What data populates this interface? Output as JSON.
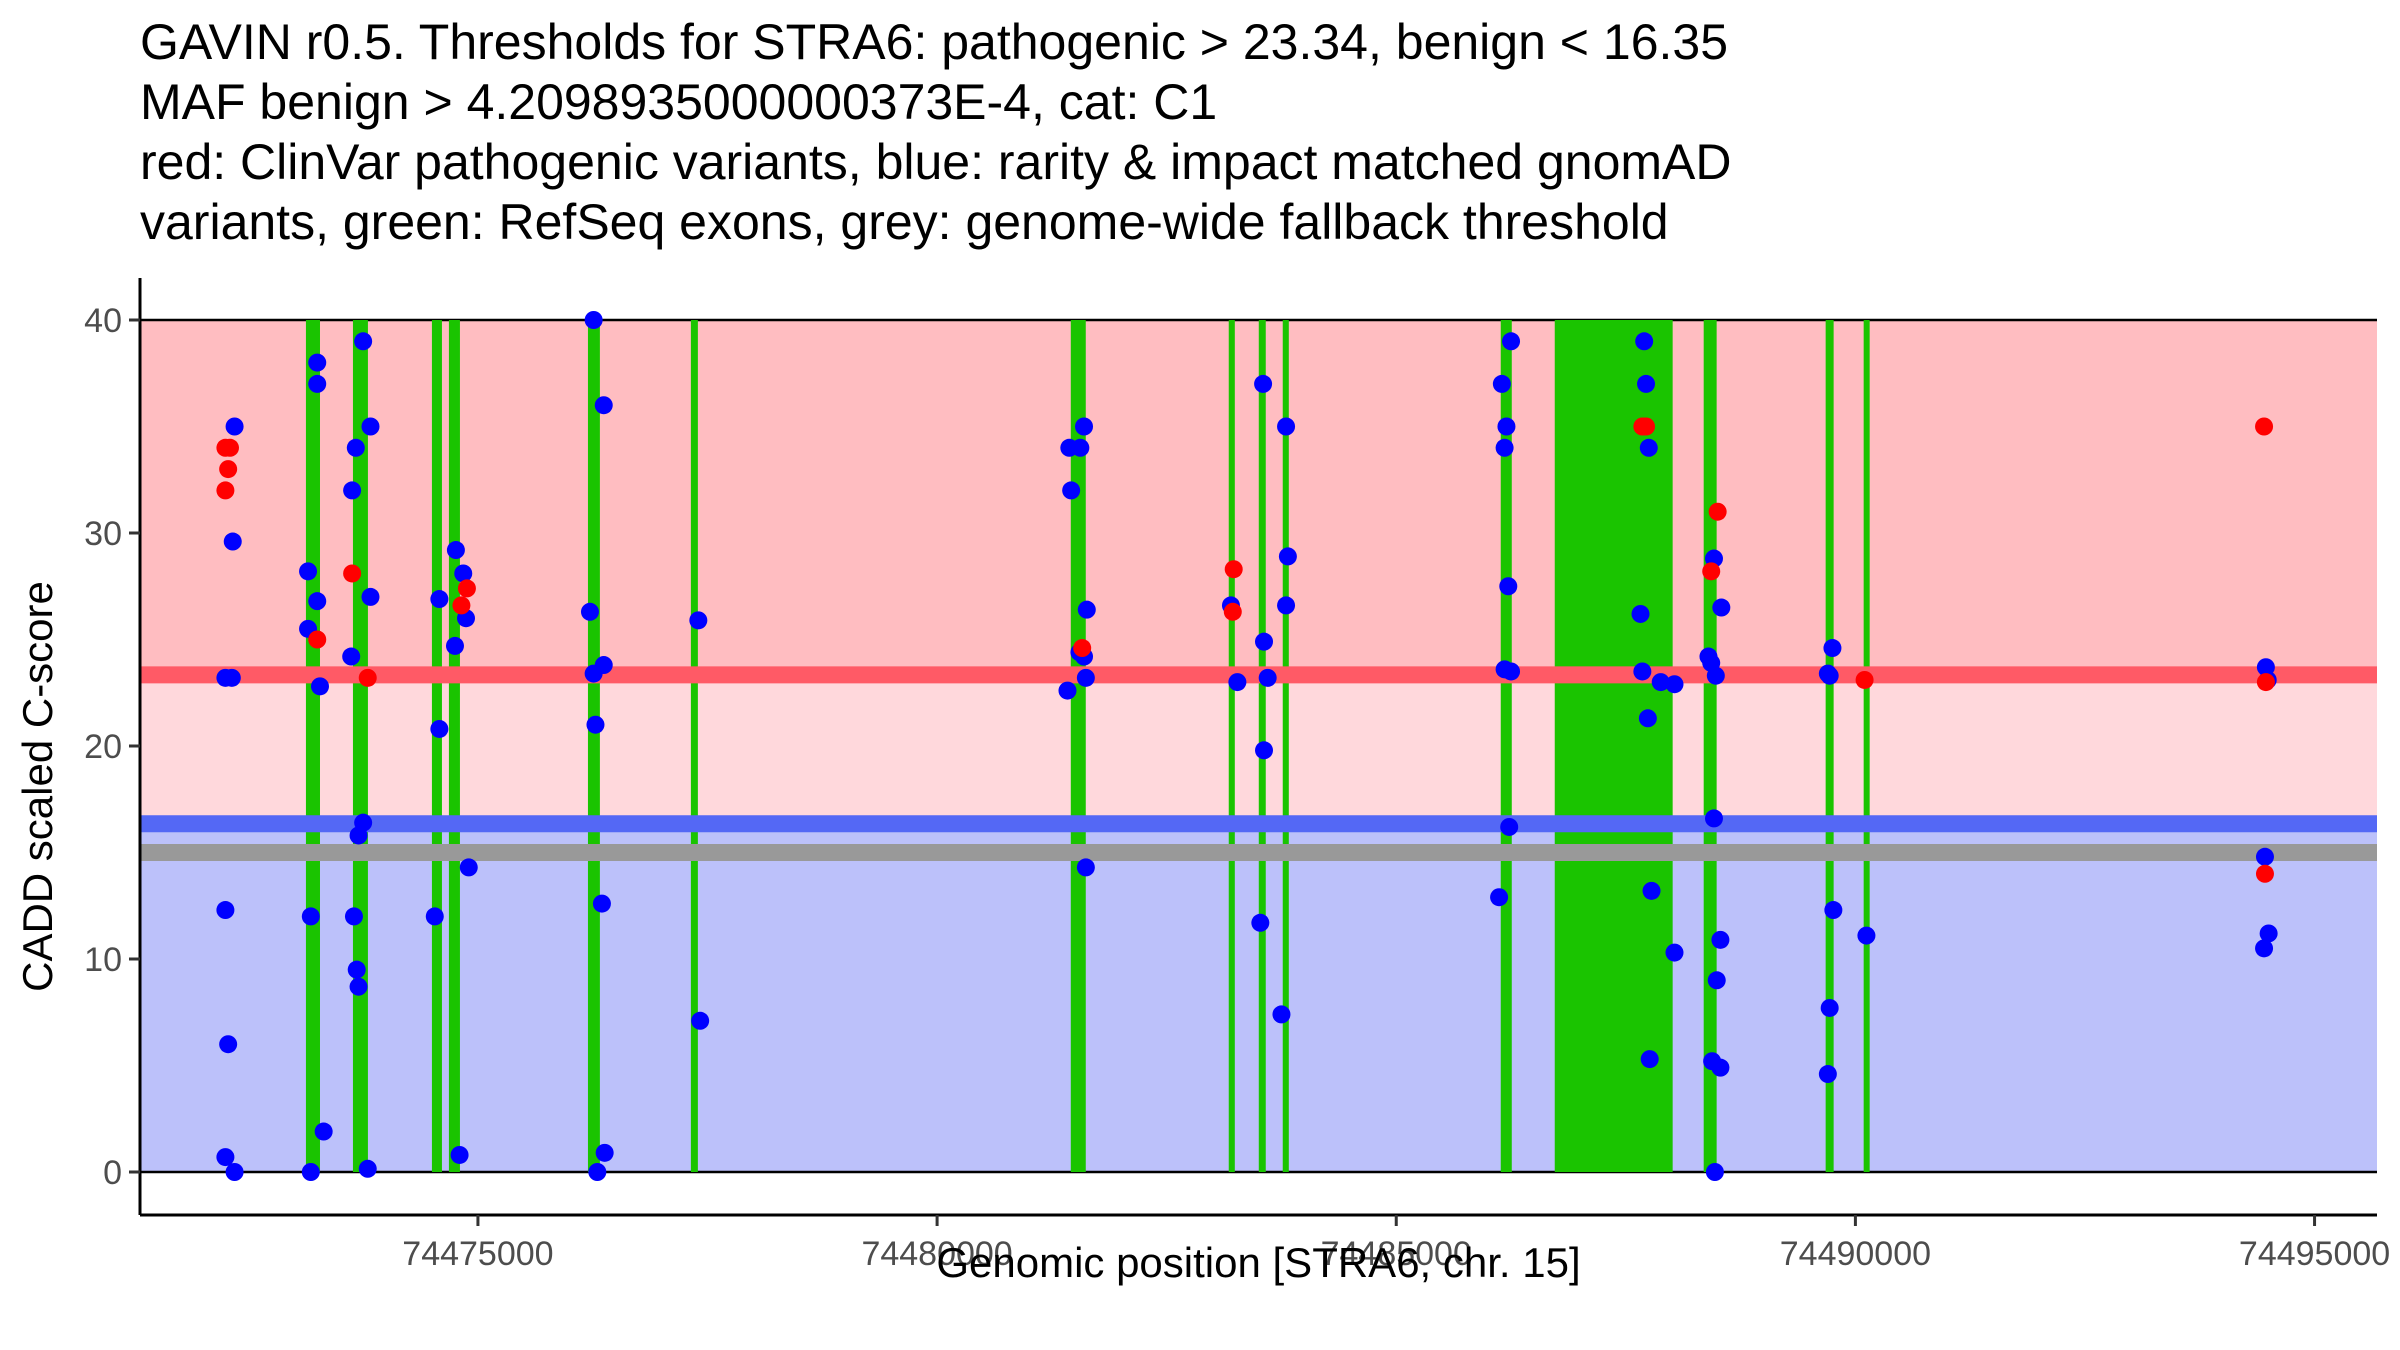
{
  "title_lines": [
    "GAVIN r0.5. Thresholds for STRA6: pathogenic > 23.34, benign < 16.35",
    "MAF benign > 4.2098935000000373E-4, cat: C1",
    "red: ClinVar pathogenic variants, blue: rarity & impact matched gnomAD",
    "variants, green: RefSeq exons, grey: genome-wide fallback threshold"
  ],
  "chart_data": {
    "type": "scatter",
    "title": "GAVIN r0.5. Thresholds for STRA6: pathogenic > 23.34, benign < 16.35",
    "xlabel": "Genomic position [STRA6, chr. 15]",
    "ylabel": "CADD scaled C-score",
    "xlim": [
      74471320,
      74495680
    ],
    "ylim": [
      -2,
      42
    ],
    "x_ticks": [
      74475000,
      74480000,
      74485000,
      74490000,
      74495000
    ],
    "x_tick_labels": [
      "74475000",
      "74480000",
      "74485000",
      "74490000",
      "74495000"
    ],
    "y_ticks": [
      0,
      10,
      20,
      30,
      40
    ],
    "y_tick_labels": [
      "0",
      "10",
      "20",
      "30",
      "40"
    ],
    "grid": false,
    "legend": "none",
    "thresholds": {
      "pathogenic": 23.34,
      "benign": 16.35,
      "genome_wide_fallback": 15.0,
      "score_range": [
        0,
        40
      ]
    },
    "colors": {
      "pathogenic_region": "#FFBDC1",
      "intermediate_region": "#FFD8DC",
      "benign_region": "#BCC1FA",
      "pathogenic_line": "#FF5A66",
      "benign_line": "#5468F5",
      "fallback_line": "#999999",
      "exon": "#1AC400",
      "clinvar": "#FF0000",
      "gnomad": "#0000FF"
    },
    "exons": [
      [
        74473127,
        74473280
      ],
      [
        74473639,
        74473802
      ],
      [
        74474499,
        74474608
      ],
      [
        74474684,
        74474804
      ],
      [
        74476198,
        74476328
      ],
      [
        74477319,
        74477395
      ],
      [
        74481456,
        74481619
      ],
      [
        74483176,
        74483242
      ],
      [
        74483503,
        74483579
      ],
      [
        74483764,
        74483830
      ],
      [
        74486138,
        74486258
      ],
      [
        74486726,
        74488010
      ],
      [
        74488348,
        74488489
      ],
      [
        74489676,
        74489763
      ],
      [
        74490090,
        74490155
      ]
    ],
    "series": [
      {
        "name": "ClinVar pathogenic",
        "color": "#FF0000",
        "points": [
          [
            74472250,
            34.0
          ],
          [
            74472300,
            34.0
          ],
          [
            74472280,
            33.0
          ],
          [
            74472250,
            32.0
          ],
          [
            74473250,
            25.0
          ],
          [
            74473630,
            28.1
          ],
          [
            74473800,
            23.2
          ],
          [
            74474820,
            26.6
          ],
          [
            74474880,
            27.4
          ],
          [
            74481580,
            24.6
          ],
          [
            74483230,
            28.3
          ],
          [
            74483220,
            26.3
          ],
          [
            74487680,
            35.0
          ],
          [
            74487720,
            35.0
          ],
          [
            74488430,
            28.2
          ],
          [
            74488500,
            31.0
          ],
          [
            74490100,
            23.1
          ],
          [
            74494450,
            35.0
          ],
          [
            74494460,
            14.0
          ],
          [
            74494470,
            23.0
          ]
        ]
      },
      {
        "name": "gnomAD matched",
        "color": "#0000FF",
        "points": [
          [
            74472350,
            35.0
          ],
          [
            74472330,
            29.6
          ],
          [
            74472250,
            23.2
          ],
          [
            74472320,
            23.2
          ],
          [
            74472250,
            12.3
          ],
          [
            74472280,
            6.0
          ],
          [
            74472250,
            0.7
          ],
          [
            74472350,
            0.0
          ],
          [
            74473250,
            38.0
          ],
          [
            74473250,
            37.0
          ],
          [
            74473150,
            28.2
          ],
          [
            74473250,
            26.8
          ],
          [
            74473150,
            25.5
          ],
          [
            74473280,
            22.8
          ],
          [
            74473180,
            12.0
          ],
          [
            74473320,
            1.9
          ],
          [
            74473180,
            0.0
          ],
          [
            74473750,
            39.0
          ],
          [
            74473670,
            34.0
          ],
          [
            74473630,
            32.0
          ],
          [
            74473830,
            35.0
          ],
          [
            74473830,
            27.0
          ],
          [
            74473620,
            24.2
          ],
          [
            74473750,
            16.4
          ],
          [
            74473700,
            15.8
          ],
          [
            74473650,
            12.0
          ],
          [
            74473680,
            9.5
          ],
          [
            74473700,
            8.7
          ],
          [
            74473800,
            0.15
          ],
          [
            74474580,
            26.9
          ],
          [
            74474760,
            29.2
          ],
          [
            74474750,
            24.7
          ],
          [
            74474580,
            20.8
          ],
          [
            74474530,
            12.0
          ],
          [
            74474840,
            28.1
          ],
          [
            74474870,
            26.0
          ],
          [
            74474900,
            14.3
          ],
          [
            74474800,
            0.8
          ],
          [
            74476260,
            40.0
          ],
          [
            74476370,
            36.0
          ],
          [
            74476220,
            26.3
          ],
          [
            74476260,
            23.4
          ],
          [
            74476370,
            23.8
          ],
          [
            74476280,
            21.0
          ],
          [
            74476350,
            12.6
          ],
          [
            74476380,
            0.9
          ],
          [
            74476300,
            0.0
          ],
          [
            74477400,
            25.9
          ],
          [
            74477420,
            7.1
          ],
          [
            74481600,
            35.0
          ],
          [
            74481560,
            34.0
          ],
          [
            74481440,
            34.0
          ],
          [
            74481460,
            32.0
          ],
          [
            74481630,
            26.4
          ],
          [
            74481550,
            24.4
          ],
          [
            74481600,
            24.2
          ],
          [
            74481620,
            23.2
          ],
          [
            74481420,
            22.6
          ],
          [
            74481620,
            14.3
          ],
          [
            74483200,
            26.6
          ],
          [
            74483270,
            23.0
          ],
          [
            74483550,
            37.0
          ],
          [
            74483560,
            24.9
          ],
          [
            74483600,
            23.2
          ],
          [
            74483560,
            19.8
          ],
          [
            74483520,
            11.7
          ],
          [
            74483800,
            35.0
          ],
          [
            74483820,
            28.9
          ],
          [
            74483800,
            26.6
          ],
          [
            74483750,
            7.4
          ],
          [
            74486150,
            37.0
          ],
          [
            74486200,
            35.0
          ],
          [
            74486180,
            34.0
          ],
          [
            74486250,
            39.0
          ],
          [
            74486220,
            27.5
          ],
          [
            74486180,
            23.6
          ],
          [
            74486250,
            23.5
          ],
          [
            74486230,
            16.2
          ],
          [
            74486120,
            12.9
          ],
          [
            74487700,
            39.0
          ],
          [
            74487720,
            37.0
          ],
          [
            74487750,
            34.0
          ],
          [
            74487660,
            26.2
          ],
          [
            74487680,
            23.5
          ],
          [
            74487740,
            21.3
          ],
          [
            74487880,
            23.0
          ],
          [
            74488030,
            22.9
          ],
          [
            74487780,
            13.2
          ],
          [
            74488030,
            10.3
          ],
          [
            74487760,
            5.3
          ],
          [
            74488460,
            28.8
          ],
          [
            74488540,
            26.5
          ],
          [
            74488400,
            24.2
          ],
          [
            74488430,
            23.9
          ],
          [
            74488480,
            23.3
          ],
          [
            74488460,
            16.6
          ],
          [
            74488530,
            10.9
          ],
          [
            74488490,
            9.0
          ],
          [
            74488440,
            5.2
          ],
          [
            74488530,
            4.9
          ],
          [
            74488470,
            0.0
          ],
          [
            74489750,
            24.6
          ],
          [
            74489700,
            23.4
          ],
          [
            74489720,
            23.3
          ],
          [
            74489760,
            12.3
          ],
          [
            74489720,
            7.7
          ],
          [
            74489700,
            4.6
          ],
          [
            74490120,
            11.1
          ],
          [
            74494470,
            23.7
          ],
          [
            74494490,
            23.1
          ],
          [
            74494460,
            14.8
          ],
          [
            74494500,
            11.2
          ],
          [
            74494450,
            10.5
          ]
        ]
      }
    ]
  }
}
